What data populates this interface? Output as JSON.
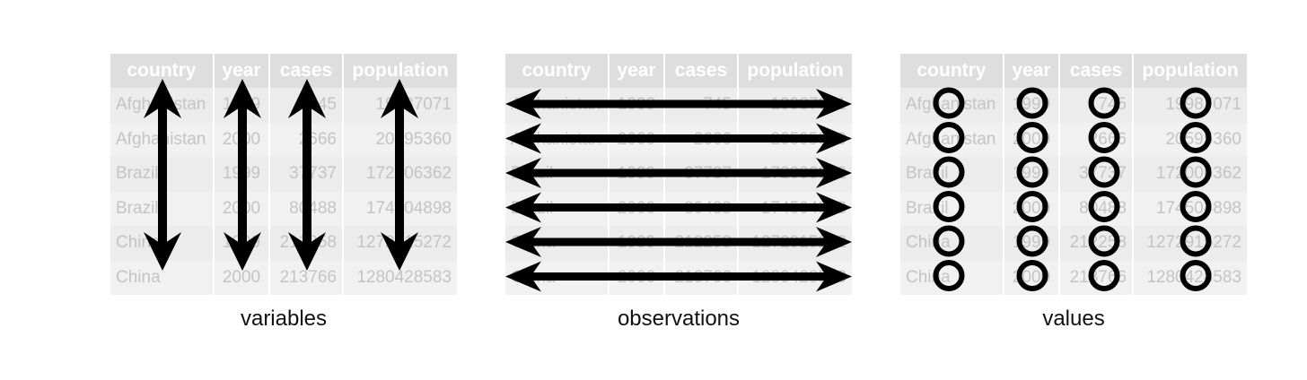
{
  "headers": [
    "country",
    "year",
    "cases",
    "population"
  ],
  "rows": [
    [
      "Afghanistan",
      "1999",
      "745",
      "19987071"
    ],
    [
      "Afghanistan",
      "2000",
      "2666",
      "20595360"
    ],
    [
      "Brazil",
      "1999",
      "37737",
      "172006362"
    ],
    [
      "Brazil",
      "2000",
      "80488",
      "174504898"
    ],
    [
      "China",
      "1999",
      "212258",
      "1272915272"
    ],
    [
      "China",
      "2000",
      "213766",
      "1280428583"
    ]
  ],
  "panels": [
    {
      "caption": "variables",
      "mark": "vertical-arrows"
    },
    {
      "caption": "observations",
      "mark": "horizontal-arrows"
    },
    {
      "caption": "values",
      "mark": "circles"
    }
  ],
  "colors": {
    "header_bg": "#dedede",
    "row_bg": "#ececec",
    "cell_text": "#c4c4c4",
    "mark": "#000000"
  }
}
